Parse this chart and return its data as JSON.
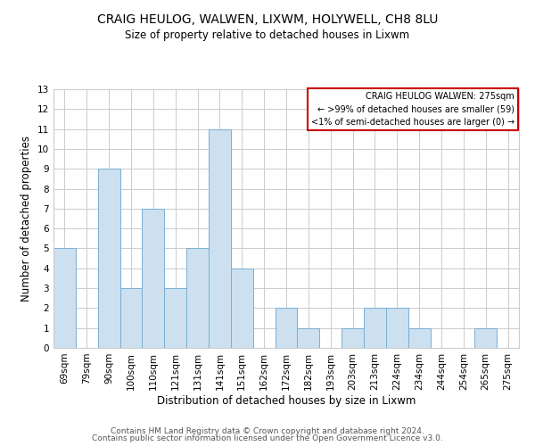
{
  "title": "CRAIG HEULOG, WALWEN, LIXWM, HOLYWELL, CH8 8LU",
  "subtitle": "Size of property relative to detached houses in Lixwm",
  "xlabel": "Distribution of detached houses by size in Lixwm",
  "ylabel": "Number of detached properties",
  "footer_line1": "Contains HM Land Registry data © Crown copyright and database right 2024.",
  "footer_line2": "Contains public sector information licensed under the Open Government Licence v3.0.",
  "bar_color": "#cce0f0",
  "bar_edge_color": "#7aafd4",
  "categories": [
    "69sqm",
    "79sqm",
    "90sqm",
    "100sqm",
    "110sqm",
    "121sqm",
    "131sqm",
    "141sqm",
    "151sqm",
    "162sqm",
    "172sqm",
    "182sqm",
    "193sqm",
    "203sqm",
    "213sqm",
    "224sqm",
    "234sqm",
    "244sqm",
    "254sqm",
    "265sqm",
    "275sqm"
  ],
  "values": [
    5,
    0,
    9,
    3,
    7,
    3,
    5,
    11,
    4,
    0,
    2,
    1,
    0,
    1,
    2,
    2,
    1,
    0,
    0,
    1,
    0
  ],
  "ylim": [
    0,
    13
  ],
  "yticks": [
    0,
    1,
    2,
    3,
    4,
    5,
    6,
    7,
    8,
    9,
    10,
    11,
    12,
    13
  ],
  "legend_title": "CRAIG HEULOG WALWEN: 275sqm",
  "legend_line1": "← >99% of detached houses are smaller (59)",
  "legend_line2": "<1% of semi-detached houses are larger (0) →",
  "legend_box_color": "#ffffff",
  "legend_box_edge": "#cc0000",
  "background_color": "#ffffff",
  "grid_color": "#cccccc",
  "title_fontsize": 10,
  "subtitle_fontsize": 8.5,
  "axis_label_fontsize": 8.5,
  "tick_fontsize": 7.5,
  "footer_fontsize": 6.5
}
